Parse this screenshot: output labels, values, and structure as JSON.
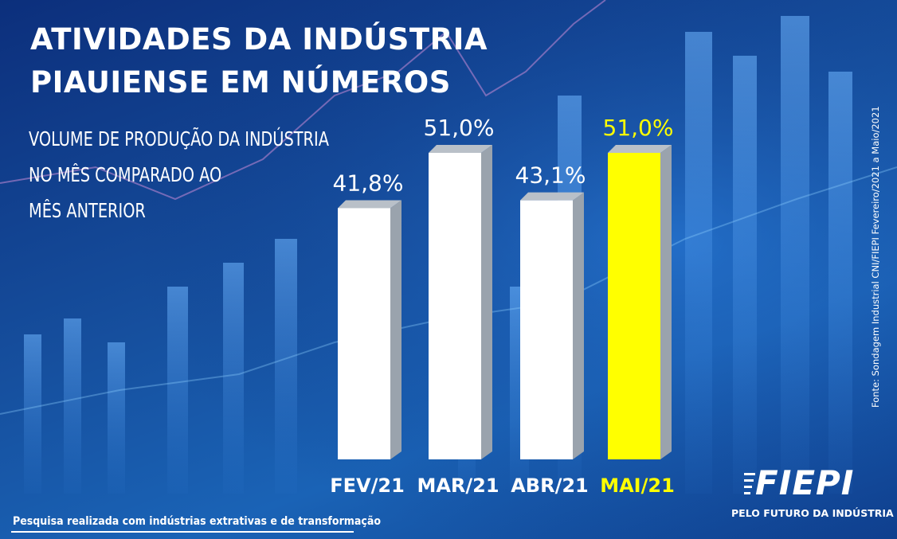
{
  "title_line1": "ATIVIDADES DA INDÚSTRIA",
  "title_line2": "PIAUIENSE EM NÚMEROS",
  "subtitle_lines": [
    "VOLUME DE PRODUÇÃO DA INDÚSTRIA",
    "NO MÊS COMPARADO AO",
    "MÊS ANTERIOR"
  ],
  "source": "Fonte: Sondagem Industrial CNI/FIEPI Fevereiro/2021 a Maio/2021",
  "logo_text": "FIEPI",
  "slogan": "PELO FUTURO DA INDÚSTRIA",
  "footnote": "Pesquisa realizada com indústrias extrativas e de transformação",
  "colors": {
    "bar_default": "#ffffff",
    "bar_highlight": "#ffff00",
    "label_default": "#ffffff",
    "label_highlight": "#ffff00",
    "background": "#1656a8"
  },
  "chart_data": {
    "type": "bar",
    "categories": [
      "FEV/21",
      "MAR/21",
      "ABR/21",
      "MAI/21"
    ],
    "values": [
      41.8,
      51.0,
      43.1,
      51.0
    ],
    "value_labels": [
      "41,8%",
      "51,0%",
      "43,1%",
      "51,0%"
    ],
    "highlight_index": 3,
    "ylim": [
      0,
      51.0
    ],
    "grid": false,
    "legend": "none"
  }
}
